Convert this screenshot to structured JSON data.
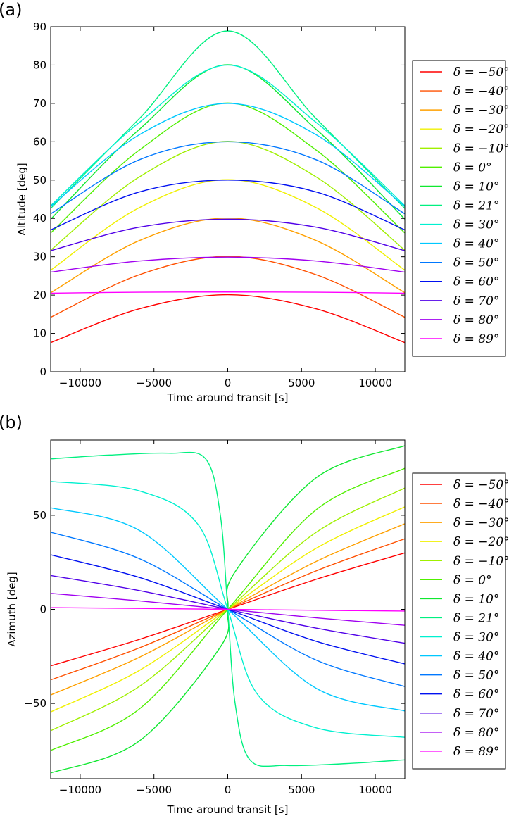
{
  "chart_data": [
    {
      "type": "line",
      "panel_label": "(a)",
      "xlabel": "Time around transit [s]",
      "ylabel": "Altitude [deg]",
      "xlim": [
        -12000,
        12000
      ],
      "ylim": [
        0,
        90
      ],
      "xticks": [
        -10000,
        -5000,
        0,
        5000,
        10000
      ],
      "xtick_labels": [
        "−10000",
        "−5000",
        "0",
        "5000",
        "10000"
      ],
      "yticks": [
        0,
        10,
        20,
        30,
        40,
        50,
        60,
        70,
        80,
        90
      ],
      "ytick_labels": [
        "0",
        "10",
        "20",
        "30",
        "40",
        "50",
        "60",
        "70",
        "80",
        "90"
      ],
      "legend_position": "outside-right",
      "series": [
        {
          "name": "δ = −50°",
          "color": "#ff0000",
          "x": [
            -12000,
            -6000,
            0,
            6000,
            12000
          ],
          "values": [
            7.6,
            16.4,
            20.1,
            16.4,
            7.6
          ]
        },
        {
          "name": "δ = −40°",
          "color": "#ff5000",
          "x": [
            -12000,
            -6000,
            0,
            6000,
            12000
          ],
          "values": [
            14.2,
            25.3,
            30.1,
            25.3,
            14.2
          ]
        },
        {
          "name": "δ = −30°",
          "color": "#ffa000",
          "x": [
            -12000,
            -6000,
            0,
            6000,
            12000
          ],
          "values": [
            20.6,
            34.2,
            40.1,
            34.2,
            20.6
          ]
        },
        {
          "name": "δ = −20°",
          "color": "#f0f000",
          "x": [
            -12000,
            -6000,
            0,
            6000,
            12000
          ],
          "values": [
            26.5,
            42.8,
            50.1,
            42.8,
            26.5
          ]
        },
        {
          "name": "δ = −10°",
          "color": "#a0f000",
          "x": [
            -12000,
            -6000,
            0,
            6000,
            12000
          ],
          "values": [
            31.7,
            50.8,
            60.1,
            50.8,
            31.7
          ]
        },
        {
          "name": "δ = 0°",
          "color": "#50f000",
          "x": [
            -12000,
            -6000,
            0,
            6000,
            12000
          ],
          "values": [
            36.2,
            57.8,
            70.1,
            57.8,
            36.2
          ]
        },
        {
          "name": "δ = 10°",
          "color": "#10e830",
          "x": [
            -12000,
            -6000,
            0,
            6000,
            12000
          ],
          "values": [
            39.8,
            63.2,
            80.1,
            63.2,
            39.8
          ]
        },
        {
          "name": "δ = 21°",
          "color": "#00f080",
          "x": [
            -12000,
            -6000,
            0,
            6000,
            12000
          ],
          "values": [
            42.6,
            66.0,
            88.9,
            66.0,
            42.6
          ]
        },
        {
          "name": "δ = 30°",
          "color": "#00f0d0",
          "x": [
            -12000,
            -6000,
            0,
            6000,
            12000
          ],
          "values": [
            43.3,
            65.0,
            80.0,
            65.0,
            43.3
          ]
        },
        {
          "name": "δ = 40°",
          "color": "#00c8ff",
          "x": [
            -12000,
            -6000,
            0,
            6000,
            12000
          ],
          "values": [
            43.1,
            61.8,
            70.0,
            61.8,
            43.1
          ]
        },
        {
          "name": "δ = 50°",
          "color": "#0078ff",
          "x": [
            -12000,
            -6000,
            0,
            6000,
            12000
          ],
          "values": [
            41.2,
            55.3,
            60.0,
            55.3,
            41.2
          ]
        },
        {
          "name": "δ = 60°",
          "color": "#0010f0",
          "x": [
            -12000,
            -6000,
            0,
            6000,
            12000
          ],
          "values": [
            37.0,
            46.9,
            50.0,
            46.9,
            37.0
          ]
        },
        {
          "name": "δ = 70°",
          "color": "#5000e8",
          "x": [
            -12000,
            -6000,
            0,
            6000,
            12000
          ],
          "values": [
            31.6,
            37.7,
            39.8,
            37.7,
            31.6
          ]
        },
        {
          "name": "δ = 80°",
          "color": "#a000f0",
          "x": [
            -12000,
            -6000,
            0,
            6000,
            12000
          ],
          "values": [
            26.0,
            28.9,
            29.9,
            28.9,
            26.0
          ]
        },
        {
          "name": "δ = 89°",
          "color": "#ff00ff",
          "x": [
            -12000,
            -6000,
            0,
            6000,
            12000
          ],
          "values": [
            20.5,
            20.75,
            20.8,
            20.75,
            20.5
          ]
        }
      ]
    },
    {
      "type": "line",
      "panel_label": "(b)",
      "xlabel": "Time around transit [s]",
      "ylabel": "Azimuth [deg]",
      "xlim": [
        -12000,
        12000
      ],
      "ylim": [
        -90,
        90
      ],
      "xticks": [
        -10000,
        -5000,
        0,
        5000,
        10000
      ],
      "xtick_labels": [
        "−10000",
        "−5000",
        "0",
        "5000",
        "10000"
      ],
      "yticks": [
        -50,
        0,
        50
      ],
      "ytick_labels": [
        "−50",
        "0",
        "50"
      ],
      "legend_position": "outside-right",
      "series": [
        {
          "name": "δ = −50°",
          "color": "#ff0000",
          "x": [
            -12000,
            -6000,
            0,
            6000,
            12000
          ],
          "values": [
            -30.0,
            -16.0,
            0,
            16.0,
            30.0
          ]
        },
        {
          "name": "δ = −40°",
          "color": "#ff5000",
          "x": [
            -12000,
            -6000,
            0,
            6000,
            12000
          ],
          "values": [
            -37.5,
            -20.5,
            0,
            20.5,
            37.5
          ]
        },
        {
          "name": "δ = −30°",
          "color": "#ffa000",
          "x": [
            -12000,
            -6000,
            0,
            6000,
            12000
          ],
          "values": [
            -45.5,
            -25.5,
            0,
            25.5,
            45.5
          ]
        },
        {
          "name": "δ = −20°",
          "color": "#f0f000",
          "x": [
            -12000,
            -6000,
            0,
            6000,
            12000
          ],
          "values": [
            -54.5,
            -32.5,
            0,
            32.5,
            54.5
          ]
        },
        {
          "name": "δ = −10°",
          "color": "#a0f000",
          "x": [
            -12000,
            -6000,
            0,
            6000,
            12000
          ],
          "values": [
            -64.5,
            -41.0,
            0,
            41.0,
            64.5
          ]
        },
        {
          "name": "δ = 0°",
          "color": "#50f000",
          "x": [
            -12000,
            -6000,
            0,
            6000,
            12000
          ],
          "values": [
            -75.0,
            -53.0,
            0,
            53.0,
            75.0
          ]
        },
        {
          "name": "δ = 10°",
          "color": "#10e830",
          "x": [
            -12000,
            -6000,
            -500,
            0,
            500,
            6000,
            12000
          ],
          "values": [
            -87.0,
            -70.0,
            -20.0,
            0,
            20.0,
            70.0,
            87.0
          ]
        },
        {
          "name": "δ = 21°",
          "color": "#00f080",
          "x": [
            -12000,
            -8000,
            -4000,
            -1500,
            -500,
            0,
            500,
            1500,
            4000,
            8000,
            12000
          ],
          "values": [
            80.0,
            82.0,
            83.0,
            80.0,
            50.0,
            0,
            -50.0,
            -80.0,
            -83.0,
            -82.0,
            -80.0
          ]
        },
        {
          "name": "δ = 30°",
          "color": "#00f0d0",
          "x": [
            -12000,
            -6000,
            -2000,
            0,
            2000,
            6000,
            12000
          ],
          "values": [
            68.0,
            63.0,
            45.0,
            0,
            -45.0,
            -63.0,
            -68.0
          ]
        },
        {
          "name": "δ = 40°",
          "color": "#00c8ff",
          "x": [
            -12000,
            -6000,
            0,
            6000,
            12000
          ],
          "values": [
            54.0,
            42.0,
            0,
            -42.0,
            -54.0
          ]
        },
        {
          "name": "δ = 50°",
          "color": "#0078ff",
          "x": [
            -12000,
            -6000,
            0,
            6000,
            12000
          ],
          "values": [
            41.0,
            27.0,
            0,
            -27.0,
            -41.0
          ]
        },
        {
          "name": "δ = 60°",
          "color": "#0010f0",
          "x": [
            -12000,
            -6000,
            0,
            6000,
            12000
          ],
          "values": [
            29.0,
            17.0,
            0,
            -17.0,
            -29.0
          ]
        },
        {
          "name": "δ = 70°",
          "color": "#5000e8",
          "x": [
            -12000,
            -6000,
            0,
            6000,
            12000
          ],
          "values": [
            18.0,
            10.0,
            0,
            -10.0,
            -18.0
          ]
        },
        {
          "name": "δ = 80°",
          "color": "#a000f0",
          "x": [
            -12000,
            -6000,
            0,
            6000,
            12000
          ],
          "values": [
            8.5,
            4.5,
            0,
            -4.5,
            -8.5
          ]
        },
        {
          "name": "δ = 89°",
          "color": "#ff00ff",
          "x": [
            -12000,
            -6000,
            0,
            6000,
            12000
          ],
          "values": [
            0.9,
            0.5,
            0,
            -0.5,
            -0.9
          ]
        }
      ]
    }
  ]
}
